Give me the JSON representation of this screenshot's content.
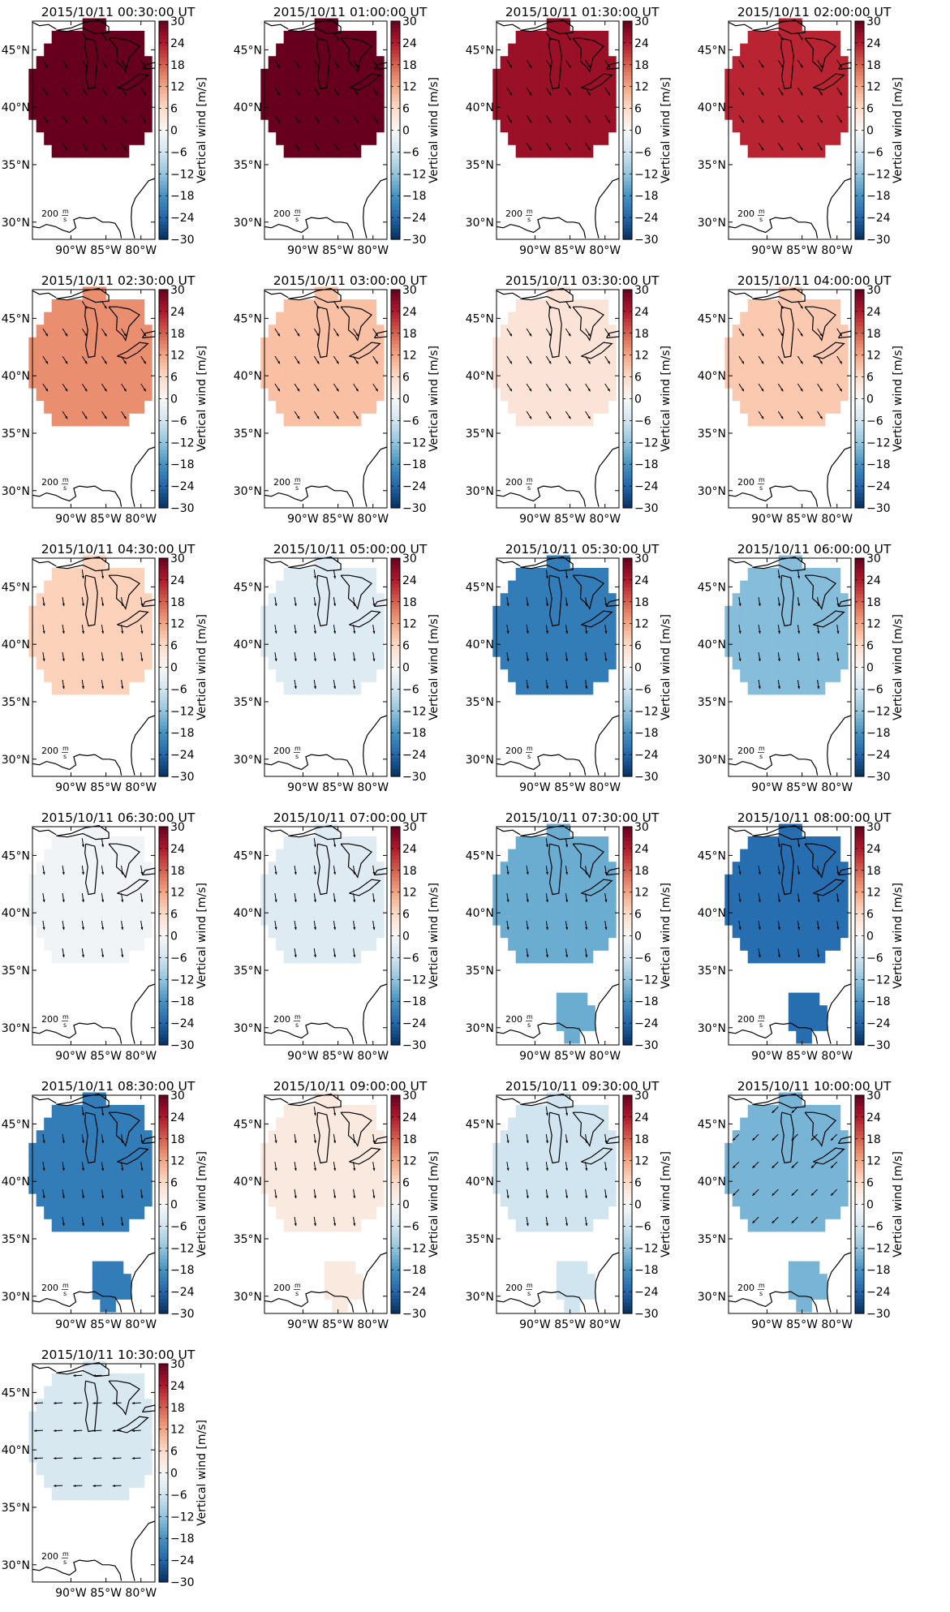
{
  "chart_data": {
    "type": "heatmap",
    "description_kind": "small-multiples map panels",
    "colormap": "RdBu_r",
    "colorbar": {
      "label": "Vertical wind [m/s]",
      "range": [
        -30,
        30
      ],
      "ticks": [
        "30",
        "24",
        "18",
        "12",
        "6",
        "0",
        "−6",
        "−12",
        "−18",
        "−24",
        "−30"
      ]
    },
    "axes": {
      "lat_ticks": [
        "45°N",
        "40°N",
        "35°N",
        "30°N"
      ],
      "lon_ticks": [
        "90°W",
        "85°W",
        "80°W"
      ],
      "lat_range": [
        28.5,
        47.5
      ],
      "lon_range": [
        -95.5,
        -78.0
      ]
    },
    "arrow_scale_label": {
      "value": "200",
      "unit_num": "m",
      "unit_den": "s"
    },
    "panels": [
      {
        "title": "2015/10/11 00:30:00 UT",
        "value": 30,
        "region": "main",
        "arrow_dir": "se"
      },
      {
        "title": "2015/10/11 01:00:00 UT",
        "value": 30,
        "region": "main",
        "arrow_dir": "se"
      },
      {
        "title": "2015/10/11 01:30:00 UT",
        "value": 26,
        "region": "main",
        "arrow_dir": "se"
      },
      {
        "title": "2015/10/11 02:00:00 UT",
        "value": 23,
        "region": "main",
        "arrow_dir": "se"
      },
      {
        "title": "2015/10/11 02:30:00 UT",
        "value": 14,
        "region": "main",
        "arrow_dir": "se"
      },
      {
        "title": "2015/10/11 03:00:00 UT",
        "value": 9,
        "region": "main",
        "arrow_dir": "se"
      },
      {
        "title": "2015/10/11 03:30:00 UT",
        "value": 4,
        "region": "main",
        "arrow_dir": "se"
      },
      {
        "title": "2015/10/11 04:00:00 UT",
        "value": 8,
        "region": "main",
        "arrow_dir": "se"
      },
      {
        "title": "2015/10/11 04:30:00 UT",
        "value": 7,
        "region": "main",
        "arrow_dir": "s"
      },
      {
        "title": "2015/10/11 05:00:00 UT",
        "value": -4,
        "region": "main",
        "arrow_dir": "s"
      },
      {
        "title": "2015/10/11 05:30:00 UT",
        "value": -21,
        "region": "main",
        "arrow_dir": "s"
      },
      {
        "title": "2015/10/11 06:00:00 UT",
        "value": -13,
        "region": "main",
        "arrow_dir": "s"
      },
      {
        "title": "2015/10/11 06:30:00 UT",
        "value": -1,
        "region": "main",
        "arrow_dir": "s"
      },
      {
        "title": "2015/10/11 07:00:00 UT",
        "value": -4,
        "region": "main",
        "arrow_dir": "s"
      },
      {
        "title": "2015/10/11 07:30:00 UT",
        "value": -15,
        "region": "main",
        "arrow_dir": "s",
        "south_blob": true
      },
      {
        "title": "2015/10/11 08:00:00 UT",
        "value": -23,
        "region": "main",
        "arrow_dir": "s",
        "south_blob": true
      },
      {
        "title": "2015/10/11 08:30:00 UT",
        "value": -21,
        "region": "main",
        "arrow_dir": "s",
        "south_blob": true
      },
      {
        "title": "2015/10/11 09:00:00 UT",
        "value": 3,
        "region": "main",
        "arrow_dir": "s",
        "south_blob": true
      },
      {
        "title": "2015/10/11 09:30:00 UT",
        "value": -6,
        "region": "main",
        "arrow_dir": "s",
        "south_blob": true
      },
      {
        "title": "2015/10/11 10:00:00 UT",
        "value": -14,
        "region": "main",
        "arrow_dir": "sw",
        "south_blob": true
      },
      {
        "title": "2015/10/11 10:30:00 UT",
        "value": -5,
        "region": "main",
        "arrow_dir": "w"
      }
    ]
  }
}
